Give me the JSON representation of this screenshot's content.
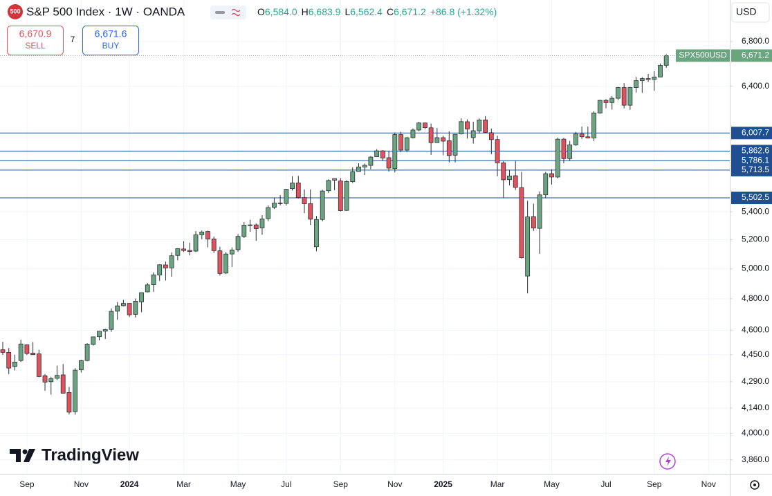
{
  "header": {
    "badge": "500",
    "title": "S&P 500 Index · 1W · OANDA",
    "legend": [
      {
        "key": "O",
        "value": "6,584.0"
      },
      {
        "key": "H",
        "value": "6,683.9"
      },
      {
        "key": "L",
        "value": "6,562.4"
      },
      {
        "key": "C",
        "value": "6,671.2"
      }
    ],
    "change": "+86.8 (+1.32%)",
    "currency": "USD"
  },
  "trade": {
    "sell_price": "6,670.9",
    "sell": "SELL",
    "spread": "7",
    "buy_price": "6,671.6",
    "buy": "BUY"
  },
  "watermark": "TradingView",
  "chart_data": {
    "type": "candlestick",
    "symbol": "SPX500USD",
    "log_scale": true,
    "grid": true,
    "up_color": "#6aa57f",
    "down_color": "#e0535c",
    "wick_color": "#2a2e39",
    "level_color": "#1d4f91",
    "last_color": "#6aa57f",
    "ylim": [
      3787,
      7193
    ],
    "yticks": [
      {
        "value": 3860,
        "label": "3,860.0"
      },
      {
        "value": 4000,
        "label": "4,000.0"
      },
      {
        "value": 4140,
        "label": "4,140.0"
      },
      {
        "value": 4290,
        "label": "4,290.0"
      },
      {
        "value": 4450,
        "label": "4,450.0"
      },
      {
        "value": 4600,
        "label": "4,600.0"
      },
      {
        "value": 4800,
        "label": "4,800.0"
      },
      {
        "value": 5000,
        "label": "5,000.0"
      },
      {
        "value": 5200,
        "label": "5,200.0"
      },
      {
        "value": 5400,
        "label": "5,400.0"
      },
      {
        "value": 6400,
        "label": "6,400.0"
      },
      {
        "value": 6800,
        "label": "6,800.0"
      }
    ],
    "levels": [
      {
        "value": 6007.7,
        "label": "6,007.7"
      },
      {
        "value": 5862.6,
        "label": "5,862.6"
      },
      {
        "value": 5786.1,
        "label": "5,786.1"
      },
      {
        "value": 5713.5,
        "label": "5,713.5"
      },
      {
        "value": 5502.5,
        "label": "5,502.5"
      }
    ],
    "last_price": {
      "value": 6671.2,
      "label": "6,671.2"
    },
    "categories": [
      null,
      null,
      null,
      null,
      "Sep",
      null,
      null,
      null,
      null,
      null,
      null,
      null,
      null,
      "Nov",
      null,
      null,
      null,
      null,
      null,
      null,
      null,
      "2024",
      null,
      null,
      null,
      null,
      null,
      null,
      null,
      null,
      "Mar",
      null,
      null,
      null,
      null,
      null,
      null,
      null,
      null,
      "May",
      null,
      null,
      null,
      null,
      null,
      null,
      null,
      "Jul",
      null,
      null,
      null,
      null,
      null,
      null,
      null,
      null,
      "Sep",
      null,
      null,
      null,
      null,
      null,
      null,
      null,
      null,
      "Nov",
      null,
      null,
      null,
      null,
      null,
      null,
      null,
      "2025",
      null,
      null,
      null,
      null,
      null,
      null,
      null,
      null,
      "Mar",
      null,
      null,
      null,
      null,
      null,
      null,
      null,
      null,
      "May",
      null,
      null,
      null,
      null,
      null,
      null,
      null,
      null,
      "Jul",
      null,
      null,
      null,
      null,
      null,
      null,
      null,
      "Sep",
      null,
      null,
      null,
      null,
      null,
      null,
      null,
      null,
      "Nov",
      null
    ],
    "open": [
      4480,
      4464,
      4380,
      4415,
      4510,
      4460,
      4455,
      4325,
      4290,
      4310,
      4330,
      4228,
      4120,
      4360,
      4415,
      4512,
      4560,
      4594,
      4605,
      4720,
      4755,
      4770,
      4700,
      4780,
      4845,
      4892,
      4957,
      5025,
      5005,
      5090,
      5135,
      5125,
      5120,
      5234,
      5258,
      5205,
      5122,
      4970,
      5100,
      5130,
      5222,
      5303,
      5305,
      5283,
      5350,
      5432,
      5465,
      5461,
      5572,
      5615,
      5505,
      5460,
      5150,
      5344,
      5556,
      5636,
      5630,
      5410,
      5625,
      5703,
      5737,
      5750,
      5818,
      5864,
      5810,
      5725,
      5995,
      5870,
      5970,
      6032,
      6090,
      6050,
      5930,
      5970,
      5945,
      5830,
      6000,
      6100,
      5970,
      6025,
      6115,
      6010,
      5955,
      5770,
      5640,
      5670,
      5580,
      4950,
      5365,
      5280,
      5525,
      5686,
      5660,
      5958,
      5803,
      5912,
      6000,
      5977,
      5968,
      6173,
      6279,
      6260,
      6297,
      6389,
      6238,
      6389,
      6449,
      6467,
      6460,
      6481,
      6584.0,
      null,
      null,
      null,
      null,
      null,
      null,
      null,
      null
    ],
    "high": [
      4528,
      4490,
      4450,
      4541,
      4513,
      4527,
      4480,
      4335,
      4319,
      4385,
      4394,
      4260,
      4370,
      4420,
      4520,
      4560,
      4595,
      4609,
      4738,
      4779,
      4793,
      4770,
      4802,
      4842,
      4903,
      4975,
      5030,
      5048,
      5111,
      5140,
      5189,
      5179,
      5261,
      5265,
      5264,
      5222,
      5150,
      5114,
      5146,
      5239,
      5325,
      5342,
      5315,
      5375,
      5447,
      5505,
      5523,
      5570,
      5666,
      5669,
      5566,
      5566,
      5370,
      5563,
      5643,
      5651,
      5652,
      5636,
      5734,
      5767,
      5765,
      5823,
      5878,
      5869,
      5866,
      6012,
      6018,
      5977,
      6045,
      6099,
      6093,
      6085,
      6049,
      5985,
      6022,
      6000,
      6128,
      6120,
      6101,
      6127,
      6147,
      6044,
      5986,
      5783,
      5715,
      5786,
      5700,
      5481,
      5460,
      5550,
      5700,
      5720,
      5970,
      5968,
      5944,
      6017,
      6060,
      6060,
      6188,
      6285,
      6290,
      6315,
      6395,
      6427,
      6395,
      6481,
      6480,
      6508,
      6532,
      6600,
      6683.9,
      null,
      null,
      null,
      null,
      null,
      null,
      null,
      null
    ],
    "low": [
      4449,
      4335,
      4356,
      4406,
      4448,
      4450,
      4316,
      4238,
      4216,
      4300,
      4223,
      4104,
      4103,
      4344,
      4410,
      4505,
      4537,
      4546,
      4590,
      4666,
      4751,
      4683,
      4680,
      4714,
      4842,
      4845,
      4918,
      4920,
      4946,
      5056,
      5114,
      5091,
      5114,
      5203,
      5146,
      5107,
      4953,
      4964,
      5011,
      5115,
      5212,
      5256,
      5191,
      5234,
      5331,
      5420,
      5447,
      5446,
      5557,
      5497,
      5390,
      5305,
      5119,
      5330,
      5538,
      5560,
      5402,
      5406,
      5615,
      5703,
      5675,
      5721,
      5816,
      5787,
      5702,
      5696,
      5853,
      5855,
      5963,
      6022,
      6039,
      5832,
      5929,
      5829,
      5774,
      5773,
      5996,
      5962,
      5923,
      6003,
      6008,
      5837,
      5666,
      5504,
      5597,
      5562,
      5069,
      4835,
      5262,
      5101,
      5500,
      5603,
      5650,
      5767,
      5786,
      5904,
      5960,
      5963,
      5942,
      6167,
      6212,
      6201,
      6281,
      6212,
      6200,
      6346,
      6343,
      6438,
      6360,
      6481,
      6562.4,
      null,
      null,
      null,
      null,
      null,
      null,
      null,
      null
    ],
    "close": [
      4464,
      4370,
      4406,
      4515,
      4457,
      4450,
      4320,
      4288,
      4308,
      4327,
      4224,
      4117,
      4358,
      4415,
      4514,
      4559,
      4594,
      4604,
      4719,
      4754,
      4770,
      4697,
      4784,
      4840,
      4891,
      4958,
      5026,
      5005,
      5088,
      5137,
      5124,
      5117,
      5234,
      5254,
      5204,
      5123,
      4967,
      5100,
      5128,
      5223,
      5303,
      5305,
      5278,
      5347,
      5431,
      5464,
      5460,
      5567,
      5615,
      5505,
      5459,
      5346,
      5344,
      5554,
      5634,
      5648,
      5408,
      5626,
      5702,
      5738,
      5751,
      5815,
      5864,
      5808,
      5729,
      5995,
      5870,
      5969,
      6032,
      6090,
      6051,
      5930,
      5970,
      5942,
      5827,
      5997,
      6101,
      6040,
      6026,
      6115,
      6013,
      5954,
      5770,
      5639,
      5668,
      5581,
      5074,
      5363,
      5282,
      5525,
      5686,
      5660,
      5958,
      5803,
      5912,
      6000,
      5977,
      5968,
      6173,
      6279,
      6260,
      6297,
      6389,
      6238,
      6389,
      6449,
      6467,
      6460,
      6481,
      6584,
      6671.2,
      null,
      null,
      null,
      null,
      null,
      null,
      null,
      null
    ]
  }
}
